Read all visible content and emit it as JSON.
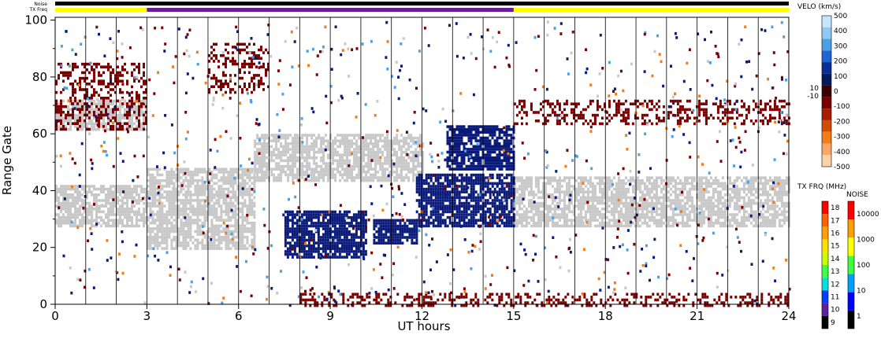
{
  "chart_data": {
    "type": "heatmap",
    "title": "",
    "xlabel": "UT hours",
    "ylabel": "Range Gate",
    "xlim": [
      0,
      24
    ],
    "ylim": [
      0,
      101
    ],
    "x_ticks": [
      0,
      3,
      6,
      9,
      12,
      15,
      18,
      21,
      24
    ],
    "y_ticks": [
      0,
      20,
      40,
      60,
      80,
      100
    ],
    "grid": "vertical scan boundaries",
    "noise_label": "Noise",
    "txfreq_label": "TX Freq",
    "tx_freq_segments": [
      {
        "start": 0,
        "end": 3,
        "color": "#ffff00"
      },
      {
        "start": 3,
        "end": 15,
        "color": "#6a1b9a"
      },
      {
        "start": 15,
        "end": 24,
        "color": "#ffff00"
      }
    ],
    "velocity_scale": {
      "title": "VELO (km/s)",
      "ticks": [
        "500",
        "400",
        "300",
        "200",
        "100",
        "0",
        "-100",
        "-200",
        "-300",
        "-400",
        "-500"
      ],
      "ground_scatter_marks": [
        "10",
        "-10"
      ],
      "colors": [
        "#c6e6ff",
        "#8fc8f2",
        "#4aa0e6",
        "#1e64d2",
        "#0a2d96",
        "#001a5e",
        "#3c0000",
        "#7a0000",
        "#a81c00",
        "#d04c00",
        "#f07c1a",
        "#f8a864",
        "#fcd2aa"
      ]
    },
    "tx_freq_scale": {
      "title": "TX FRQ (MHz)",
      "ticks": [
        "18",
        "17",
        "16",
        "15",
        "14",
        "13",
        "12",
        "11",
        "10",
        "9"
      ],
      "colors": [
        "#ff0000",
        "#ff6000",
        "#ffa000",
        "#ffe000",
        "#c8ff00",
        "#40ff40",
        "#00e0e0",
        "#0040ff",
        "#6020a0",
        "#000000"
      ]
    },
    "noise_scale": {
      "title": "NOISE",
      "ticks": [
        "10000",
        "1000",
        "100",
        "10",
        "1"
      ],
      "colors": [
        "#ff0000",
        "#ffa000",
        "#ffff00",
        "#40ff40",
        "#00a0ff",
        "#0000ff",
        "#000000"
      ]
    },
    "regions": [
      {
        "name": "ground scatter",
        "x": [
          15,
          24
        ],
        "y": [
          28,
          45
        ],
        "value": "ground scatter",
        "color": "#c8c8c8"
      },
      {
        "name": "ground scatter",
        "x": [
          0,
          3
        ],
        "y": [
          28,
          42
        ],
        "value": "ground scatter",
        "color": "#c8c8c8"
      },
      {
        "name": "ground scatter",
        "x": [
          3,
          6.5
        ],
        "y": [
          20,
          48
        ],
        "value": "ground scatter",
        "color": "#c8c8c8"
      },
      {
        "name": "ground scatter",
        "x": [
          6.5,
          12
        ],
        "y": [
          44,
          60
        ],
        "value": "ground scatter",
        "color": "#c8c8c8"
      },
      {
        "name": "ground scatter",
        "x": [
          0,
          3
        ],
        "y": [
          62,
          72
        ],
        "value": "ground scatter",
        "color": "#c8c8c8"
      },
      {
        "name": "toward radar",
        "x": [
          7.5,
          10.2
        ],
        "y": [
          17,
          33
        ],
        "value": 150,
        "color": "#0a1a7a"
      },
      {
        "name": "toward radar",
        "x": [
          10.4,
          11.8
        ],
        "y": [
          22,
          30
        ],
        "value": 150,
        "color": "#0a1a7a"
      },
      {
        "name": "toward radar",
        "x": [
          12.8,
          15
        ],
        "y": [
          48,
          63
        ],
        "value": 100,
        "color": "#0a1a7a"
      },
      {
        "name": "toward radar",
        "x": [
          11.8,
          15
        ],
        "y": [
          28,
          46
        ],
        "value": 100,
        "color": "#0a1a7a"
      },
      {
        "name": "away from radar",
        "x": [
          0,
          3
        ],
        "y": [
          62,
          85
        ],
        "value": -150,
        "color": "#7a0000"
      },
      {
        "name": "away from radar",
        "x": [
          5,
          7
        ],
        "y": [
          75,
          92
        ],
        "value": -150,
        "color": "#7a0000"
      },
      {
        "name": "away from radar",
        "x": [
          8,
          24
        ],
        "y": [
          0,
          4
        ],
        "value": -150,
        "color": "#7a0000"
      },
      {
        "name": "away from radar",
        "x": [
          15,
          24
        ],
        "y": [
          64,
          72
        ],
        "value": -150,
        "color": "#7a0000"
      }
    ]
  }
}
